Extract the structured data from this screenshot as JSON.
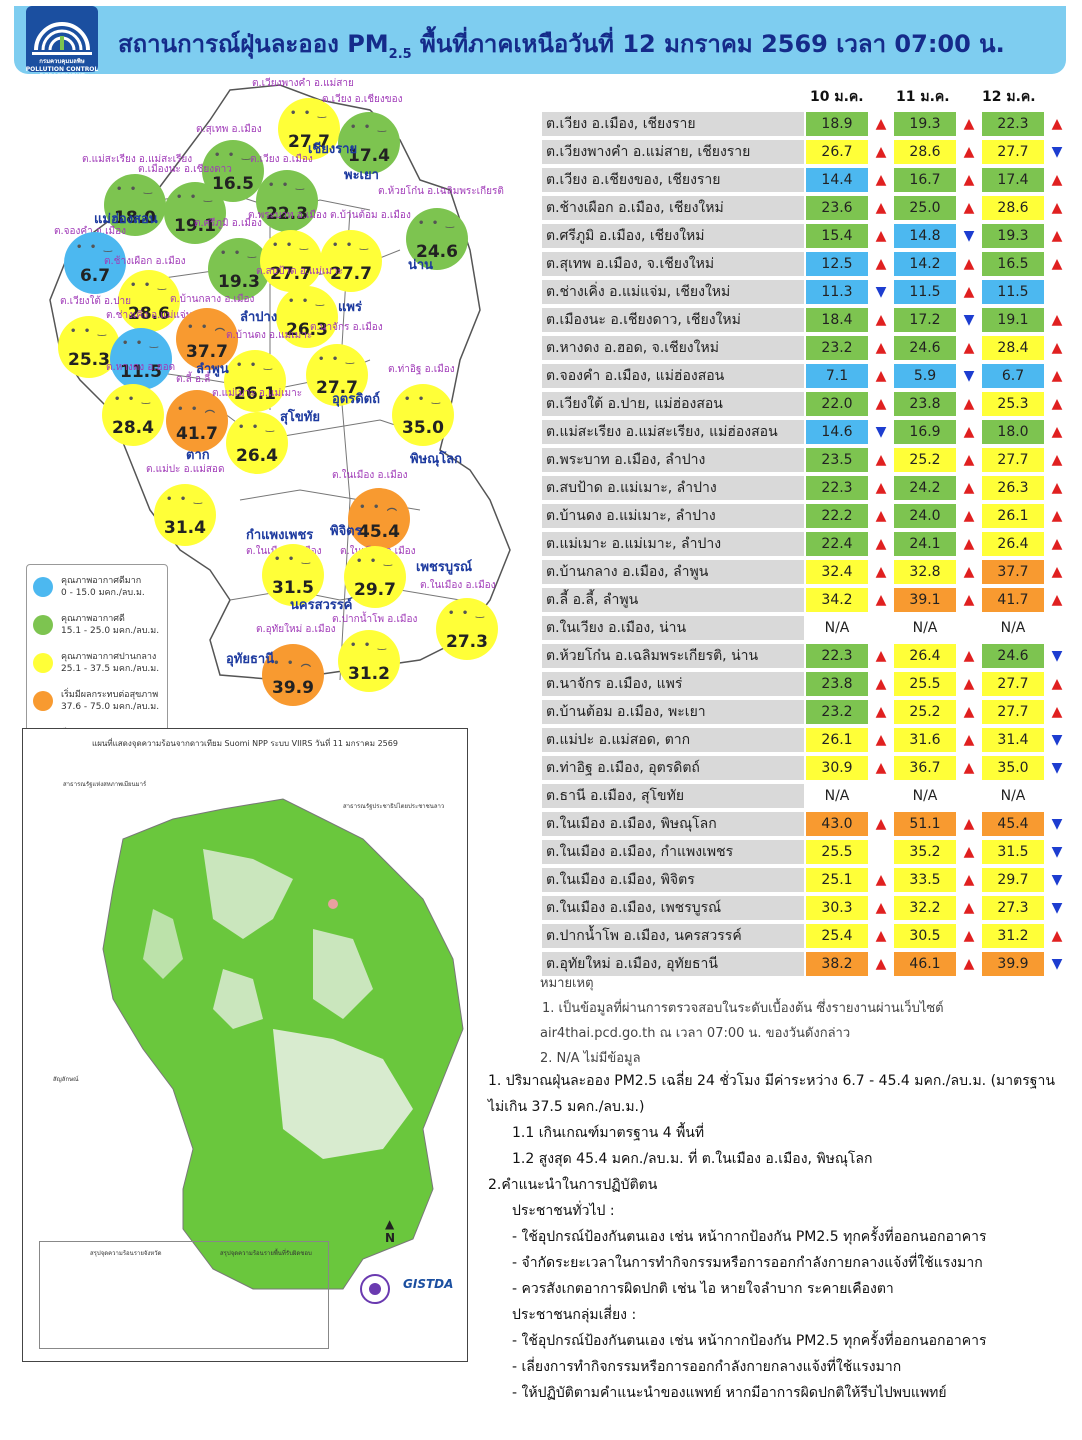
{
  "header": {
    "logo_caption": "กรมควบคุมมลพิษ\nPOLLUTION CONTROL DEPARTMENT",
    "title_prefix": "สถานการณ์ฝุ่นละออง PM",
    "title_sub": "2.5",
    "title_suffix": " พื้นที่ภาคเหนือวันที่ 12 มกราคม 2569 เวลา 07:00 น."
  },
  "map": {
    "bubbles": [
      {
        "value": "27.7",
        "level": "yellow",
        "label": "ต.เวียงพางคำ อ.แม่สาย"
      },
      {
        "value": "17.4",
        "level": "green",
        "label": "ต.เวียง อ.เชียงของ"
      },
      {
        "value": "16.5",
        "level": "green",
        "label": "ต.สุเทพ อ.เมือง"
      },
      {
        "value": "18.0",
        "level": "green",
        "label": "ต.แม่สะเรียง อ.แม่สะเรียง"
      },
      {
        "value": "19.1",
        "level": "green",
        "label": "ต.เมืองนะ อ.เชียงดาว"
      },
      {
        "value": "22.3",
        "level": "green",
        "label": "ต.เวียง อ.เมือง"
      },
      {
        "value": "24.6",
        "level": "green",
        "label": "ต.ห้วยโก๋น อ.เฉลิมพระเกียรติ"
      },
      {
        "value": "6.7",
        "level": "blue",
        "label": "ต.จองคำ อ.เมือง"
      },
      {
        "value": "19.3",
        "level": "green",
        "label": "ต.ศรีภูมิ อ.เมือง"
      },
      {
        "value": "27.7",
        "level": "yellow",
        "label": "ต.พระบาท อ.เมือง"
      },
      {
        "value": "27.7",
        "level": "yellow",
        "label": "ต.บ้านต้อม อ.เมือง"
      },
      {
        "value": "28.6",
        "level": "yellow",
        "label": "ต.ช้างเผือก อ.เมือง"
      },
      {
        "value": "25.3",
        "level": "yellow",
        "label": "ต.เวียงใต้ อ.ปาย"
      },
      {
        "value": "11.5",
        "level": "blue",
        "label": "ต.ช่างเคิ่ง อ.แม่แจ่ม"
      },
      {
        "value": "37.7",
        "level": "orange",
        "label": "ต.บ้านกลาง อ.เมือง"
      },
      {
        "value": "26.3",
        "level": "yellow",
        "label": "ต.สบป้าด อ.แม่เมาะ"
      },
      {
        "value": "27.7",
        "level": "yellow",
        "label": "ต.นาจักร อ.เมือง"
      },
      {
        "value": "26.1",
        "level": "yellow",
        "label": "ต.บ้านดง อ.แม่เมาะ"
      },
      {
        "value": "28.4",
        "level": "yellow",
        "label": "ต.หางดง อ.ฮอด"
      },
      {
        "value": "41.7",
        "level": "orange",
        "label": "ต.ลี้ อ.ลี้"
      },
      {
        "value": "26.4",
        "level": "yellow",
        "label": "ต.แม่เมาะ อ.แม่เมาะ"
      },
      {
        "value": "35.0",
        "level": "yellow",
        "label": "ต.ท่าอิฐ อ.เมือง"
      },
      {
        "value": "31.4",
        "level": "yellow",
        "label": "ต.แม่ปะ อ.แม่สอด"
      },
      {
        "value": "45.4",
        "level": "orange",
        "label": "ต.ในเมือง อ.เมือง"
      },
      {
        "value": "31.5",
        "level": "yellow",
        "label": "ต.ในเมือง อ.เมือง"
      },
      {
        "value": "29.7",
        "level": "yellow",
        "label": "ต.ในเมือง อ.เมือง"
      },
      {
        "value": "27.3",
        "level": "yellow",
        "label": "ต.ในเมือง อ.เมือง"
      },
      {
        "value": "39.9",
        "level": "orange",
        "label": "ต.อุทัยใหม่ อ.เมือง"
      },
      {
        "value": "31.2",
        "level": "yellow",
        "label": "ต.ปากน้ำโพ อ.เมือง"
      }
    ],
    "provinces": [
      "เชียงราย",
      "แม่ฮ่องสอน",
      "พะเยา",
      "น่าน",
      "ลำปาง",
      "แพร่",
      "ลำพูน",
      "อุตรดิตถ์",
      "สุโขทัย",
      "ตาก",
      "พิษณุโลก",
      "กำแพงเพชร",
      "พิจิตร",
      "เพชรบูรณ์",
      "นครสวรรค์",
      "อุทัยธานี"
    ],
    "legend": [
      {
        "title": "คุณภาพอากาศดีมาก",
        "range": "0 - 15.0 มคก./ลบ.ม.",
        "color": "#4cb8f0"
      },
      {
        "title": "คุณภาพอากาศดี",
        "range": "15.1 - 25.0 มคก./ลบ.ม.",
        "color": "#7dc450"
      },
      {
        "title": "คุณภาพอากาศปานกลาง",
        "range": "25.1 - 37.5 มคก./ลบ.ม.",
        "color": "#ffff38"
      },
      {
        "title": "เริ่มมีผลกระทบต่อสุขภาพ",
        "range": "37.6 - 75.0 มคก./ลบ.ม.",
        "color": "#f89a30"
      },
      {
        "title": "มีผลกระทบต่อสุขภาพ",
        "range": "มากกว่า 75 มคก./ลบ.ม.",
        "color": "#f03c3c"
      }
    ]
  },
  "hotspot_map": {
    "title": "แผนที่แสดงจุดความร้อนจากดาวเทียม Suomi NPP ระบบ VIIRS วันที่ 11 มกราคม 2569",
    "label_myanmar": "สาธารณรัฐแห่งสหภาพเมียนมาร์",
    "label_laos": "สาธารณรัฐประชาธิปไตยประชาชนลาว",
    "legend_title": "สัญลักษณ์",
    "summary_left": "สรุปจุดความร้อนรายจังหวัด",
    "summary_right": "สรุปจุดความร้อนรายพื้นที่รับผิดชอบ",
    "agency": "GISTDA",
    "north": "N"
  },
  "table": {
    "dates": [
      "10 ม.ค.",
      "11 ม.ค.",
      "12 ม.ค."
    ],
    "rows": [
      {
        "name": "ต.เวียง อ.เมือง, เชียงราย",
        "v": [
          [
            "18.9",
            "green",
            "up"
          ],
          [
            "19.3",
            "green",
            "up"
          ],
          [
            "22.3",
            "green",
            "up"
          ]
        ]
      },
      {
        "name": "ต.เวียงพางคำ อ.แม่สาย, เชียงราย",
        "v": [
          [
            "26.7",
            "yellow",
            "up"
          ],
          [
            "28.6",
            "yellow",
            "up"
          ],
          [
            "27.7",
            "yellow",
            "dn"
          ]
        ]
      },
      {
        "name": "ต.เวียง อ.เชียงของ, เชียงราย",
        "v": [
          [
            "14.4",
            "blue",
            "up"
          ],
          [
            "16.7",
            "green",
            "up"
          ],
          [
            "17.4",
            "green",
            "up"
          ]
        ]
      },
      {
        "name": "ต.ช้างเผือก อ.เมือง, เชียงใหม่",
        "v": [
          [
            "23.6",
            "green",
            "up"
          ],
          [
            "25.0",
            "green",
            "up"
          ],
          [
            "28.6",
            "yellow",
            "up"
          ]
        ]
      },
      {
        "name": "ต.ศรีภูมิ อ.เมือง, เชียงใหม่",
        "v": [
          [
            "15.4",
            "green",
            "up"
          ],
          [
            "14.8",
            "blue",
            "dn"
          ],
          [
            "19.3",
            "green",
            "up"
          ]
        ]
      },
      {
        "name": "ต.สุเทพ อ.เมือง, จ.เชียงใหม่",
        "v": [
          [
            "12.5",
            "blue",
            "up"
          ],
          [
            "14.2",
            "blue",
            "up"
          ],
          [
            "16.5",
            "green",
            "up"
          ]
        ]
      },
      {
        "name": "ต.ช่างเคิ่ง อ.แม่แจ่ม, เชียงใหม่",
        "v": [
          [
            "11.3",
            "blue",
            "dn"
          ],
          [
            "11.5",
            "blue",
            "up"
          ],
          [
            "11.5",
            "blue",
            ""
          ]
        ]
      },
      {
        "name": "ต.เมืองนะ อ.เชียงดาว, เชียงใหม่",
        "v": [
          [
            "18.4",
            "green",
            "up"
          ],
          [
            "17.2",
            "green",
            "dn"
          ],
          [
            "19.1",
            "green",
            "up"
          ]
        ]
      },
      {
        "name": "ต.หางดง อ.ฮอด, จ.เชียงใหม่",
        "v": [
          [
            "23.2",
            "green",
            "up"
          ],
          [
            "24.6",
            "green",
            "up"
          ],
          [
            "28.4",
            "yellow",
            "up"
          ]
        ]
      },
      {
        "name": "ต.จองคำ อ.เมือง, แม่ฮ่องสอน",
        "v": [
          [
            "7.1",
            "blue",
            "up"
          ],
          [
            "5.9",
            "blue",
            "dn"
          ],
          [
            "6.7",
            "blue",
            "up"
          ]
        ]
      },
      {
        "name": "ต.เวียงใต้ อ.ปาย, แม่ฮ่องสอน",
        "v": [
          [
            "22.0",
            "green",
            "up"
          ],
          [
            "23.8",
            "green",
            "up"
          ],
          [
            "25.3",
            "yellow",
            "up"
          ]
        ]
      },
      {
        "name": "ต.แม่สะเรียง อ.แม่สะเรียง, แม่ฮ่องสอน",
        "v": [
          [
            "14.6",
            "blue",
            "dn"
          ],
          [
            "16.9",
            "green",
            "up"
          ],
          [
            "18.0",
            "green",
            "up"
          ]
        ]
      },
      {
        "name": "ต.พระบาท อ.เมือง, ลำปาง",
        "v": [
          [
            "23.5",
            "green",
            "up"
          ],
          [
            "25.2",
            "yellow",
            "up"
          ],
          [
            "27.7",
            "yellow",
            "up"
          ]
        ]
      },
      {
        "name": "ต.สบป้าด อ.แม่เมาะ, ลำปาง",
        "v": [
          [
            "22.3",
            "green",
            "up"
          ],
          [
            "24.2",
            "green",
            "up"
          ],
          [
            "26.3",
            "yellow",
            "up"
          ]
        ]
      },
      {
        "name": "ต.บ้านดง อ.แม่เมาะ, ลำปาง",
        "v": [
          [
            "22.2",
            "green",
            "up"
          ],
          [
            "24.0",
            "green",
            "up"
          ],
          [
            "26.1",
            "yellow",
            "up"
          ]
        ]
      },
      {
        "name": "ต.แม่เมาะ อ.แม่เมาะ, ลำปาง",
        "v": [
          [
            "22.4",
            "green",
            "up"
          ],
          [
            "24.1",
            "green",
            "up"
          ],
          [
            "26.4",
            "yellow",
            "up"
          ]
        ]
      },
      {
        "name": "ต.บ้านกลาง อ.เมือง, ลำพูน",
        "v": [
          [
            "32.4",
            "yellow",
            "up"
          ],
          [
            "32.8",
            "yellow",
            "up"
          ],
          [
            "37.7",
            "orange",
            "up"
          ]
        ]
      },
      {
        "name": "ต.ลี้ อ.ลี้, ลำพูน",
        "v": [
          [
            "34.2",
            "yellow",
            "up"
          ],
          [
            "39.1",
            "orange",
            "up"
          ],
          [
            "41.7",
            "orange",
            "up"
          ]
        ]
      },
      {
        "name": "ต.ในเวียง อ.เมือง, น่าน",
        "v": [
          [
            "N/A",
            "na",
            ""
          ],
          [
            "N/A",
            "na",
            ""
          ],
          [
            "N/A",
            "na",
            ""
          ]
        ]
      },
      {
        "name": "ต.ห้วยโก๋น อ.เฉลิมพระเกียรติ, น่าน",
        "v": [
          [
            "22.3",
            "green",
            "up"
          ],
          [
            "26.4",
            "yellow",
            "up"
          ],
          [
            "24.6",
            "green",
            "dn"
          ]
        ]
      },
      {
        "name": "ต.นาจักร อ.เมือง, แพร่",
        "v": [
          [
            "23.8",
            "green",
            "up"
          ],
          [
            "25.5",
            "yellow",
            "up"
          ],
          [
            "27.7",
            "yellow",
            "up"
          ]
        ]
      },
      {
        "name": "ต.บ้านต้อม อ.เมือง, พะเยา",
        "v": [
          [
            "23.2",
            "green",
            "up"
          ],
          [
            "25.2",
            "yellow",
            "up"
          ],
          [
            "27.7",
            "yellow",
            "up"
          ]
        ]
      },
      {
        "name": "ต.แม่ปะ อ.แม่สอด, ตาก",
        "v": [
          [
            "26.1",
            "yellow",
            "up"
          ],
          [
            "31.6",
            "yellow",
            "up"
          ],
          [
            "31.4",
            "yellow",
            "dn"
          ]
        ]
      },
      {
        "name": "ต.ท่าอิฐ อ.เมือง, อุตรดิตถ์",
        "v": [
          [
            "30.9",
            "yellow",
            "up"
          ],
          [
            "36.7",
            "yellow",
            "up"
          ],
          [
            "35.0",
            "yellow",
            "dn"
          ]
        ]
      },
      {
        "name": "ต.ธานี อ.เมือง, สุโขทัย",
        "v": [
          [
            "N/A",
            "na",
            ""
          ],
          [
            "N/A",
            "na",
            ""
          ],
          [
            "N/A",
            "na",
            ""
          ]
        ]
      },
      {
        "name": "ต.ในเมือง อ.เมือง, พิษณุโลก",
        "v": [
          [
            "43.0",
            "orange",
            "up"
          ],
          [
            "51.1",
            "orange",
            "up"
          ],
          [
            "45.4",
            "orange",
            "dn"
          ]
        ]
      },
      {
        "name": "ต.ในเมือง อ.เมือง, กำแพงเพชร",
        "v": [
          [
            "25.5",
            "yellow",
            ""
          ],
          [
            "35.2",
            "yellow",
            "up"
          ],
          [
            "31.5",
            "yellow",
            "dn"
          ]
        ]
      },
      {
        "name": "ต.ในเมือง อ.เมือง, พิจิตร",
        "v": [
          [
            "25.1",
            "yellow",
            "up"
          ],
          [
            "33.5",
            "yellow",
            "up"
          ],
          [
            "29.7",
            "yellow",
            "dn"
          ]
        ]
      },
      {
        "name": "ต.ในเมือง อ.เมือง, เพชรบูรณ์",
        "v": [
          [
            "30.3",
            "yellow",
            "up"
          ],
          [
            "32.2",
            "yellow",
            "up"
          ],
          [
            "27.3",
            "yellow",
            "dn"
          ]
        ]
      },
      {
        "name": "ต.ปากน้ำโพ อ.เมือง, นครสวรรค์",
        "v": [
          [
            "25.4",
            "yellow",
            "up"
          ],
          [
            "30.5",
            "yellow",
            "up"
          ],
          [
            "31.2",
            "yellow",
            "up"
          ]
        ]
      },
      {
        "name": "ต.อุทัยใหม่ อ.เมือง, อุทัยธานี",
        "v": [
          [
            "38.2",
            "orange",
            "up"
          ],
          [
            "46.1",
            "orange",
            "up"
          ],
          [
            "39.9",
            "orange",
            "dn"
          ]
        ]
      }
    ]
  },
  "notes": {
    "heading": "หมายเหตุ",
    "line1": "1. เป็นข้อมูลที่ผ่านการตรวจสอบในระดับเบื้องต้น ซึ่งรายงานผ่านเว็บไซต์",
    "line2": "air4thai.pcd.go.th  ณ  เวลา 07:00  น.  ของวันดังกล่าว",
    "line3": "2. N/A  ไม่มีข้อมูล"
  },
  "advice": {
    "p1": "1. ปริมาณฝุ่นละออง PM2.5 เฉลี่ย 24 ชั่วโมง มีค่าระหว่าง 6.7 - 45.4 มคก./ลบ.ม. (มาตรฐานไม่เกิน 37.5 มคก./ลบ.ม.)",
    "p1_1": "1.1 เกินเกณฑ์มาตรฐาน 4 พื้นที่",
    "p1_2": "1.2 สูงสุด 45.4 มคก./ลบ.ม. ที่ ต.ในเมือง อ.เมือง, พิษณุโลก",
    "p2": "2.คำแนะนำในการปฏิบัติตน",
    "general": "ประชาชนทั่วไป :",
    "g1": "- ใช้อุปกรณ์ป้องกันตนเอง เช่น หน้ากากป้องกัน PM2.5 ทุกครั้งที่ออกนอกอาคาร",
    "g2": "- จำกัดระยะเวลาในการทำกิจกรรมหรือการออกกำลังกายกลางแจ้งที่ใช้แรงมาก",
    "g3": "- ควรสังเกตอาการผิดปกติ เช่น ไอ หายใจลำบาก ระคายเคืองตา",
    "risk": "ประชาชนกลุ่มเสี่ยง :",
    "r1": "- ใช้อุปกรณ์ป้องกันตนเอง เช่น หน้ากากป้องกัน PM2.5 ทุกครั้งที่ออกนอกอาคาร",
    "r2": "- เลี่ยงการทำกิจกรรมหรือการออกกำลังกายกลางแจ้งที่ใช้แรงมาก",
    "r3": "- ให้ปฏิบัติตามคำแนะนำของแพทย์  หากมีอาการผิดปกติให้รีบไปพบแพทย์"
  }
}
